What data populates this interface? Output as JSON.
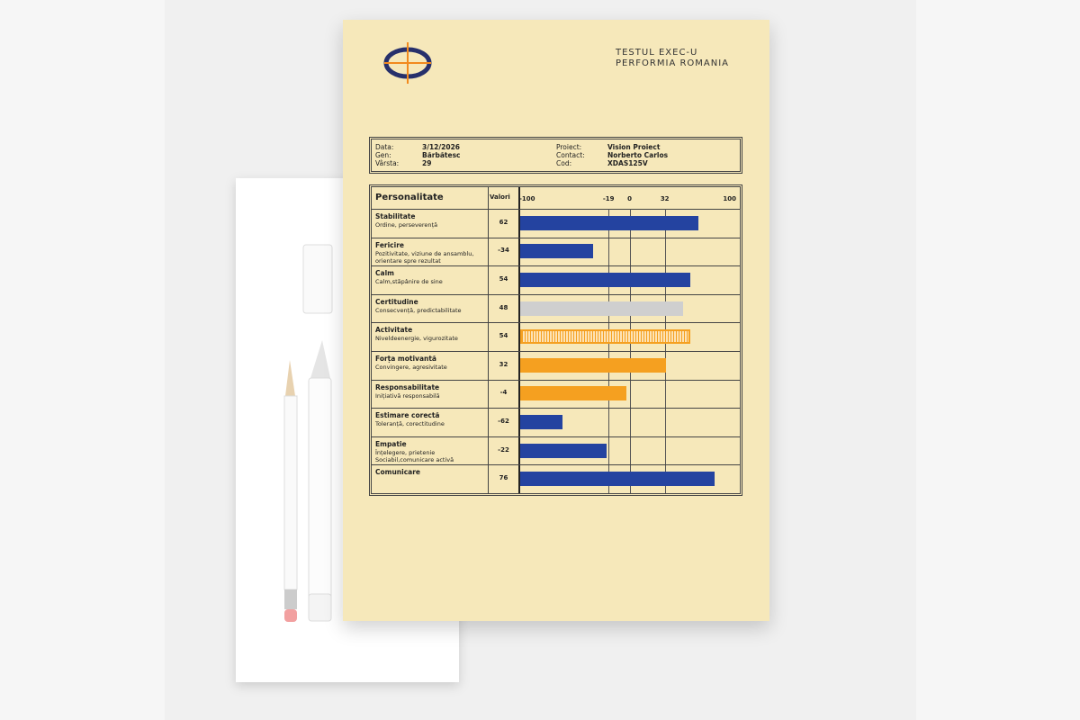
{
  "header": {
    "title": "TESTUL EXEC-U",
    "subtitle": "PERFORMIA ROMANIA"
  },
  "info": {
    "left": [
      {
        "label": "Data:",
        "value": "3/12/2026"
      },
      {
        "label": "Gen:",
        "value": "Bărbătesc"
      },
      {
        "label": "Vârsta:",
        "value": "29"
      }
    ],
    "right": [
      {
        "label": "Proiect:",
        "value": "Vision Proiect"
      },
      {
        "label": "Contact:",
        "value": "Norberto Carlos"
      },
      {
        "label": "Cod:",
        "value": "XDAS125V"
      }
    ]
  },
  "chart_data": {
    "type": "bar",
    "title": "Personalitate",
    "value_header": "Valori",
    "categories": [
      "Stabilitate",
      "Fericire",
      "Calm",
      "Certitudine",
      "Activitate",
      "Forța motivantă",
      "Responsabilitate",
      "Estimare corectă",
      "Empatie",
      "Comunicare"
    ],
    "descriptions": [
      "Ordine, perseverență",
      "Pozitivitate, viziune de ansamblu,\norientare spre rezultat",
      "Calm,stăpânire de sine",
      "Consecvență, predictabilitate",
      "Niveldeenergie, vigurozitate",
      "Convingere, agresivitate",
      "Inițiativă responsabilă",
      "Toleranță, corectitudine",
      "Înțelegere, prietenie\nSociabil,comunicare activă",
      null
    ],
    "values": [
      62,
      -34,
      54,
      48,
      54,
      32,
      -4,
      -62,
      -22,
      76
    ],
    "colors": [
      "#2443a0",
      "#2443a0",
      "#2443a0",
      "#cfcfcf",
      "#f5a020",
      "#f5a020",
      "#f5a020",
      "#2443a0",
      "#2443a0",
      "#2443a0"
    ],
    "hatched": [
      false,
      false,
      false,
      false,
      true,
      false,
      false,
      false,
      false,
      false
    ],
    "xlim": [
      -100,
      100
    ],
    "xticks": [
      -100,
      -19,
      0,
      32,
      100
    ],
    "grid": true
  }
}
